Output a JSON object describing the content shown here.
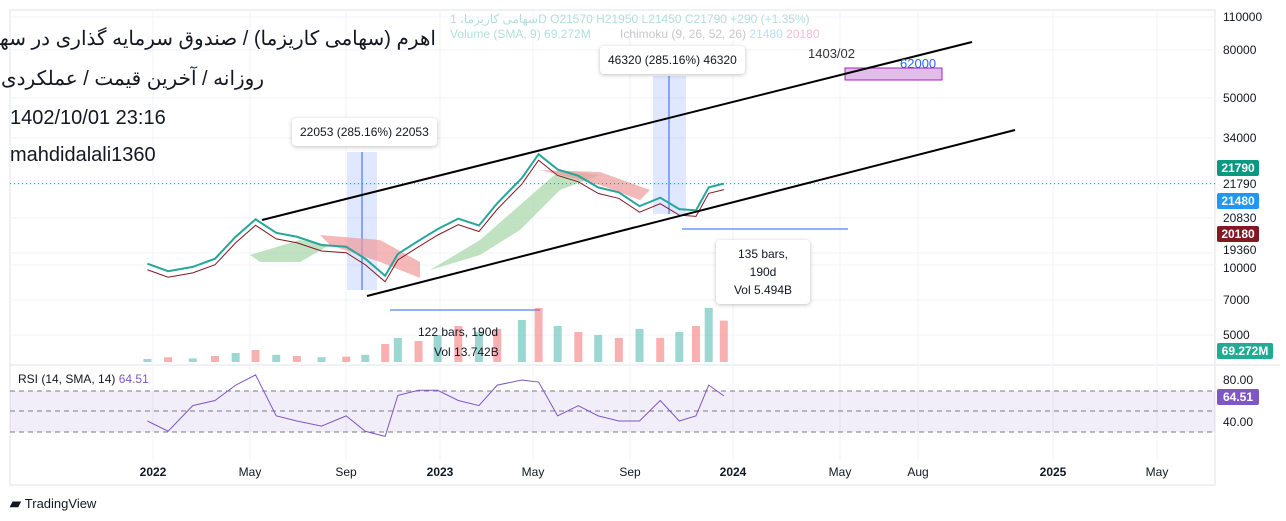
{
  "header": {
    "symbol_line": "سهامی کاریزما، 1D  O21570  H21950  L21450  C21790  +290 (+1.35%)",
    "volume_label": "Volume (SMA, 9)  69.272M",
    "ichimoku_label": "Ichimoku (9, 26, 52, 26)",
    "ichimoku_v1": "21480",
    "ichimoku_v2": "20180"
  },
  "overlay": {
    "title": "اهرم (سهامی کاریزما) / صندوق سرمایه گذاری در سهام",
    "subtitle": "روزانه / آخرین قیمت / عملکردی",
    "datetime": "1402/10/01 23:16",
    "author": "mahdidalali1360"
  },
  "measure1": {
    "label": "22053 (285.16%) 22053",
    "bars": "122 bars, 190d",
    "vol": "Vol 13.742B"
  },
  "measure2": {
    "label": "46320 (285.16%) 46320",
    "bars": "135 bars, 190d",
    "vol": "Vol 5.494B"
  },
  "target": {
    "date": "1403/02",
    "price": "62000"
  },
  "price_axis": [
    "110000",
    "80000",
    "50000",
    "34000",
    "21790",
    "20830",
    "19360",
    "10000",
    "7000",
    "5000"
  ],
  "tags": {
    "last": "21790",
    "tenkan": "21480",
    "kijun": "20180",
    "volume": "69.272M",
    "rsi": "64.51"
  },
  "rsi": {
    "label": "RSI (14, SMA, 14)",
    "value": "64.51",
    "levels": [
      "80.00",
      "40.00"
    ]
  },
  "time_axis": [
    "2022",
    "May",
    "Sep",
    "2023",
    "May",
    "Sep",
    "2024",
    "May",
    "Aug",
    "2025",
    "May"
  ],
  "brand": "TradingView",
  "colors": {
    "up": "#26a69a",
    "down": "#ef5350",
    "rsi": "#7e57c2",
    "measure": "#2962ff"
  },
  "chart_data": {
    "type": "line",
    "title": "اهرم daily",
    "yscale": "log",
    "ylim": [
      4800,
      115000
    ],
    "dates": [
      "2021-12-25",
      "2022-01-20",
      "2022-02-20",
      "2022-03-20",
      "2022-04-15",
      "2022-05-10",
      "2022-06-05",
      "2022-07-01",
      "2022-08-01",
      "2022-09-01",
      "2022-09-25",
      "2022-10-20",
      "2022-11-05",
      "2022-12-01",
      "2022-12-25",
      "2023-01-20",
      "2023-02-15",
      "2023-03-10",
      "2023-04-10",
      "2023-05-01",
      "2023-05-25",
      "2023-06-20",
      "2023-07-15",
      "2023-08-10",
      "2023-09-05",
      "2023-10-01",
      "2023-10-25",
      "2023-11-15",
      "2023-12-01",
      "2023-12-20"
    ],
    "close": [
      10000,
      9300,
      9700,
      10500,
      13000,
      15400,
      13500,
      13000,
      12000,
      11800,
      10500,
      8900,
      11000,
      12500,
      14000,
      15500,
      14500,
      18000,
      23000,
      29000,
      25000,
      23500,
      21000,
      20000,
      17500,
      19000,
      17000,
      16800,
      21000,
      21790
    ],
    "volume_m": [
      5,
      8,
      6,
      10,
      15,
      20,
      12,
      10,
      8,
      9,
      12,
      30,
      40,
      35,
      45,
      60,
      50,
      55,
      70,
      90,
      60,
      50,
      45,
      40,
      55,
      40,
      50,
      60,
      90,
      69
    ],
    "rsi": [
      40,
      30,
      55,
      60,
      75,
      85,
      45,
      40,
      35,
      45,
      30,
      25,
      65,
      70,
      70,
      60,
      55,
      75,
      80,
      78,
      45,
      55,
      45,
      40,
      40,
      60,
      40,
      45,
      75,
      64.5
    ]
  }
}
